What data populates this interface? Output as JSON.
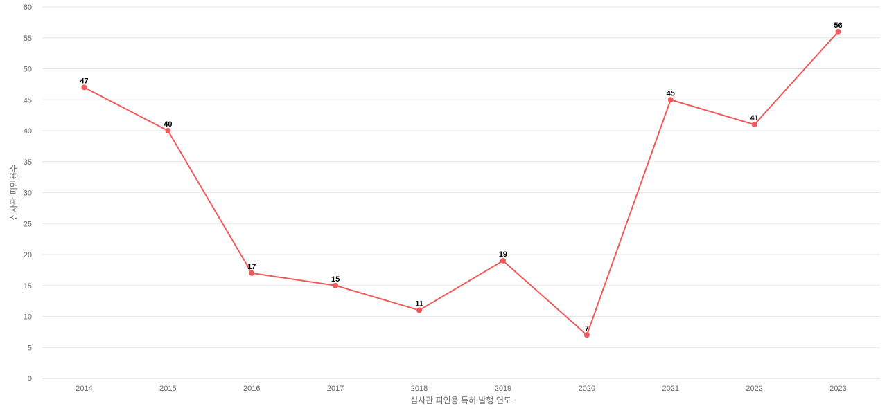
{
  "chart_data": {
    "type": "line",
    "title": "",
    "xlabel": "심사관 피인용 특허 발행 연도",
    "ylabel": "심사관 피인용수",
    "categories": [
      "2014",
      "2015",
      "2016",
      "2017",
      "2018",
      "2019",
      "2020",
      "2021",
      "2022",
      "2023"
    ],
    "series": [
      {
        "name": "심사관 피인용수",
        "values": [
          47,
          40,
          17,
          15,
          11,
          19,
          7,
          45,
          41,
          56
        ],
        "color": "#f05a5a"
      }
    ],
    "ylim": [
      0,
      60
    ],
    "yticks": [
      0,
      5,
      10,
      15,
      20,
      25,
      30,
      35,
      40,
      45,
      50,
      55,
      60
    ],
    "grid": true,
    "legend": "none"
  }
}
